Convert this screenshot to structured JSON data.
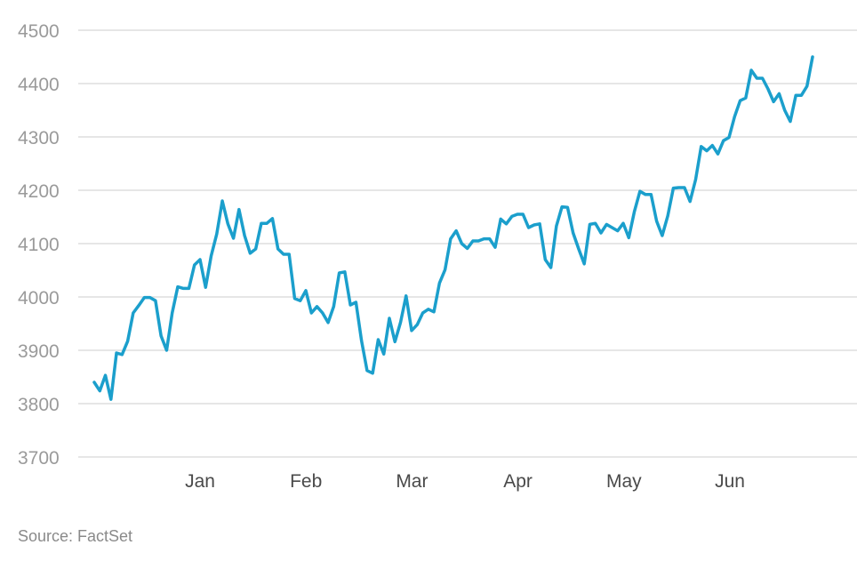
{
  "chart_data": {
    "type": "line",
    "title": "",
    "xlabel": "",
    "ylabel": "",
    "ylim": [
      3700,
      4500
    ],
    "yticks": [
      3700,
      3800,
      3900,
      4000,
      4100,
      4200,
      4300,
      4400,
      4500
    ],
    "xtick_labels": [
      "Jan",
      "Feb",
      "Mar",
      "Apr",
      "May",
      "Jun"
    ],
    "grid": "horizontal",
    "legend": "none",
    "series": [
      {
        "color": "#1b9fcc",
        "values": [
          3840,
          3824,
          3853,
          3808,
          3895,
          3892,
          3917,
          3970,
          3984,
          3999,
          3999,
          3993,
          3927,
          3900,
          3970,
          4019,
          4016,
          4016,
          4060,
          4070,
          4018,
          4077,
          4118,
          4180,
          4137,
          4110,
          4164,
          4115,
          4082,
          4090,
          4138,
          4138,
          4147,
          4090,
          4080,
          4080,
          3997,
          3993,
          4012,
          3970,
          3982,
          3970,
          3952,
          3982,
          4045,
          4047,
          3985,
          3990,
          3918,
          3862,
          3857,
          3920,
          3893,
          3960,
          3916,
          3952,
          4002,
          3937,
          3948,
          3970,
          3977,
          3972,
          4026,
          4051,
          4109,
          4124,
          4100,
          4091,
          4105,
          4105,
          4109,
          4109,
          4093,
          4146,
          4137,
          4151,
          4155,
          4155,
          4130,
          4135,
          4137,
          4070,
          4055,
          4133,
          4169,
          4168,
          4120,
          4090,
          4062,
          4136,
          4138,
          4120,
          4136,
          4130,
          4124,
          4138,
          4111,
          4160,
          4198,
          4192,
          4192,
          4142,
          4115,
          4152,
          4204,
          4205,
          4205,
          4179,
          4220,
          4282,
          4274,
          4284,
          4268,
          4293,
          4299,
          4338,
          4368,
          4373,
          4425,
          4410,
          4410,
          4390,
          4366,
          4381,
          4350,
          4329,
          4378,
          4378,
          4395,
          4450
        ]
      }
    ],
    "source_note": "Source: FactSet"
  }
}
